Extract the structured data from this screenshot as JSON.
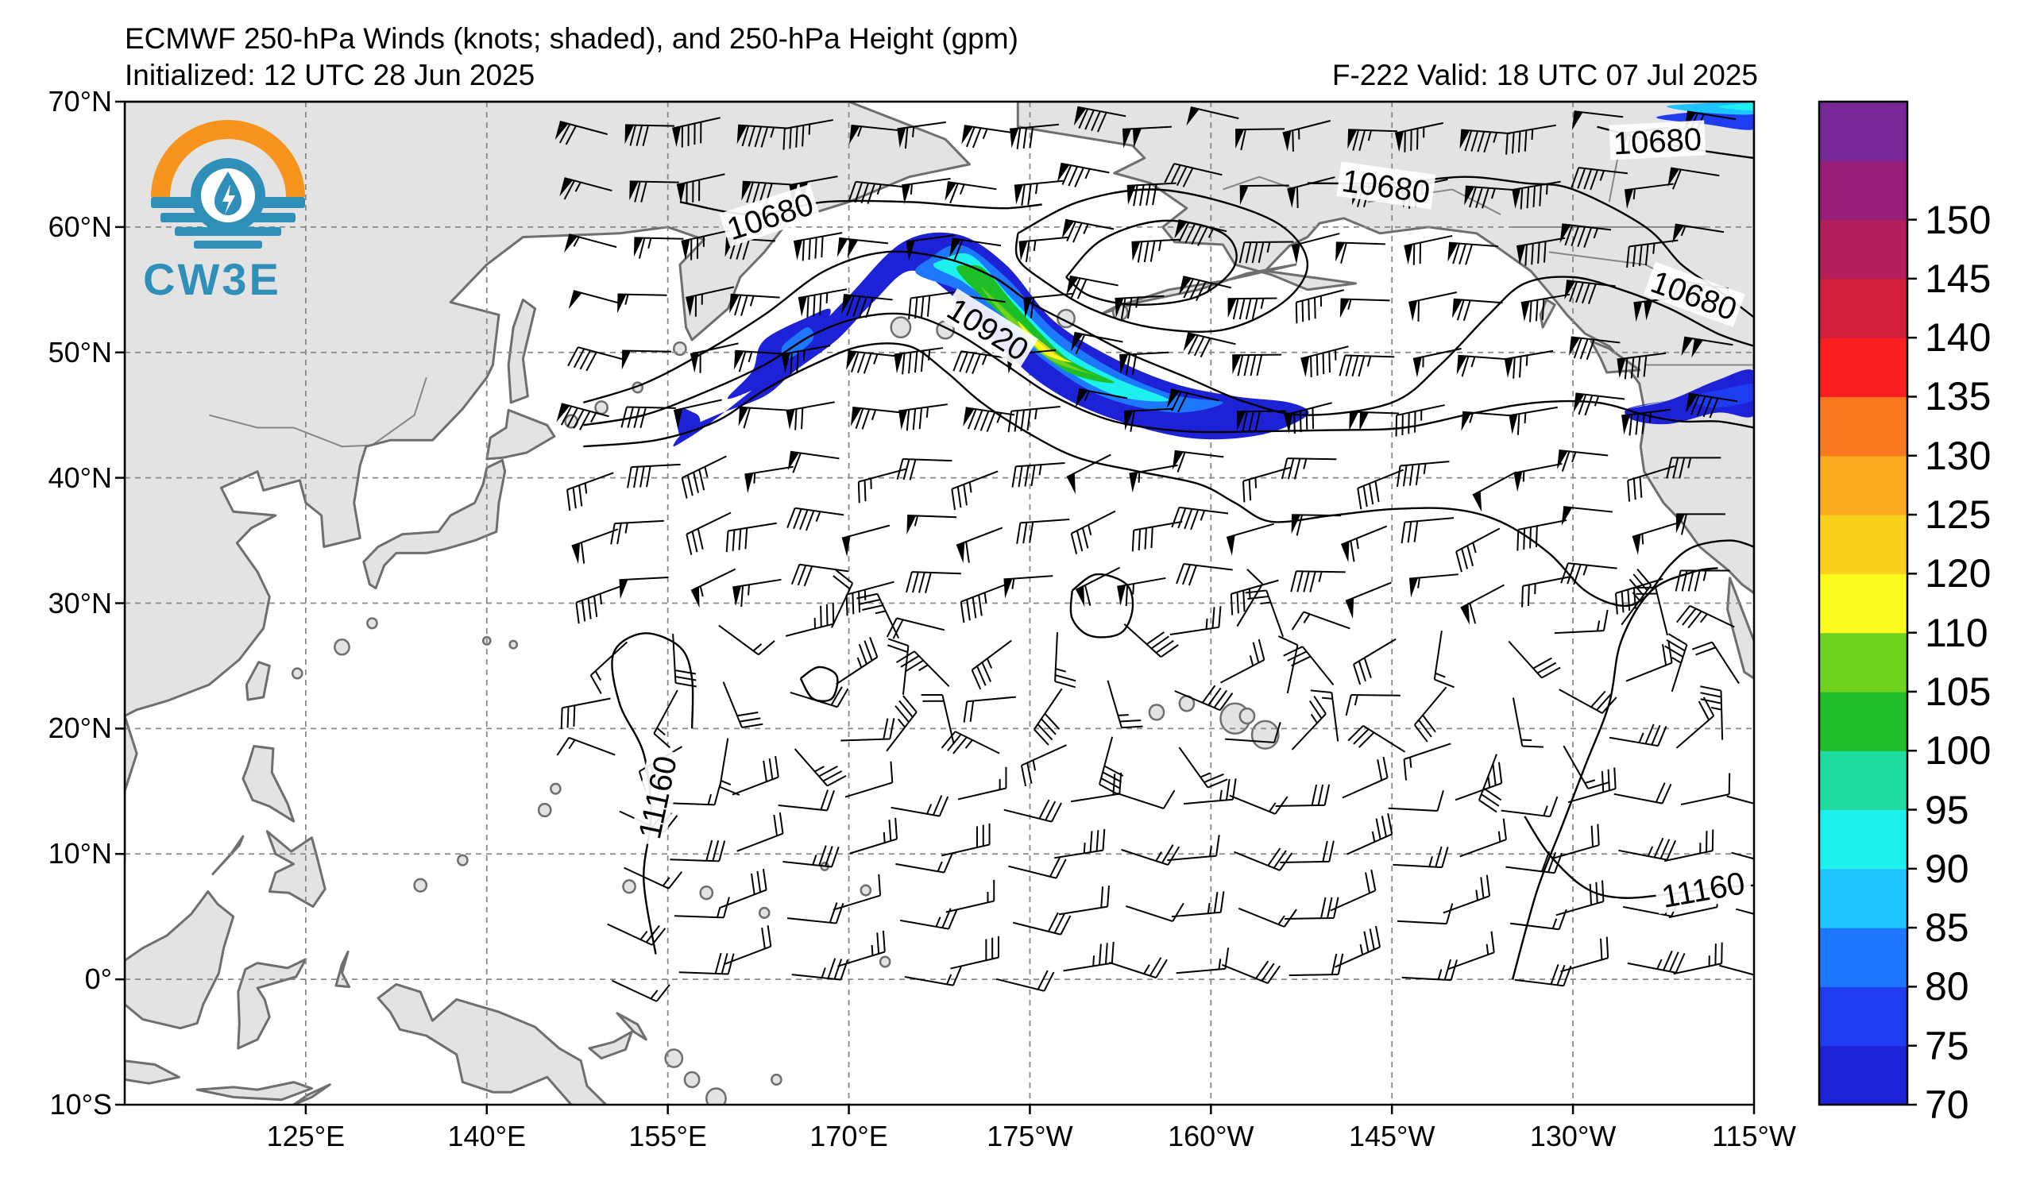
{
  "header": {
    "title_line1": "ECMWF 250-hPa Winds (knots; shaded), and 250-hPa Height (gpm)",
    "init_label": "Initialized: 12 UTC 28 Jun 2025",
    "valid_label": "F-222  Valid: 18 UTC 07 Jul 2025"
  },
  "logo": {
    "text": "CW3E",
    "colors": {
      "orange": "#f7941d",
      "teal": "#2f8fb8",
      "dark": "#1d6f96"
    }
  },
  "map": {
    "lon_range": [
      110,
      245
    ],
    "lat_range": [
      -10,
      70
    ],
    "lat_ticks": [
      {
        "value": 70,
        "label": "70°N"
      },
      {
        "value": 60,
        "label": "60°N"
      },
      {
        "value": 50,
        "label": "50°N"
      },
      {
        "value": 40,
        "label": "40°N"
      },
      {
        "value": 30,
        "label": "30°N"
      },
      {
        "value": 20,
        "label": "20°N"
      },
      {
        "value": 10,
        "label": "10°N"
      },
      {
        "value": 0,
        "label": "0°"
      },
      {
        "value": -10,
        "label": "10°S"
      }
    ],
    "lon_ticks": [
      {
        "value": 125,
        "label": "125°E"
      },
      {
        "value": 140,
        "label": "140°E"
      },
      {
        "value": 155,
        "label": "155°E"
      },
      {
        "value": 170,
        "label": "170°E"
      },
      {
        "value": 185,
        "label": "175°W"
      },
      {
        "value": 200,
        "label": "160°W"
      },
      {
        "value": 215,
        "label": "145°W"
      },
      {
        "value": 230,
        "label": "130°W"
      },
      {
        "value": 245,
        "label": "115°W"
      }
    ],
    "contour_labels": [
      {
        "text": "10680",
        "lon": 163.5,
        "lat": 60.8,
        "rotate": -18
      },
      {
        "text": "10680",
        "lon": 214.5,
        "lat": 63.2,
        "rotate": 8
      },
      {
        "text": "10680",
        "lon": 237,
        "lat": 66.8,
        "rotate": -3
      },
      {
        "text": "10680",
        "lon": 240,
        "lat": 54.5,
        "rotate": 20
      },
      {
        "text": "10920",
        "lon": 181.5,
        "lat": 51.8,
        "rotate": 32
      },
      {
        "text": "11160",
        "lon": 154.2,
        "lat": 14.5,
        "rotate": -78
      },
      {
        "text": "11160",
        "lon": 240.8,
        "lat": 7.1,
        "rotate": -10
      }
    ],
    "colors": {
      "land": "#e3e3e3",
      "coast": "#6e6e6e",
      "grid": "#888888",
      "contour": "#000000"
    }
  },
  "chart_data": {
    "type": "heatmap",
    "variable": "250-hPa wind speed (knots)",
    "colorbar": {
      "levels": [
        70,
        75,
        80,
        85,
        90,
        95,
        100,
        105,
        110,
        120,
        125,
        130,
        135,
        140,
        145,
        150
      ],
      "labels": [
        "70",
        "75",
        "80",
        "85",
        "90",
        "95",
        "100",
        "105",
        "110",
        "120",
        "125",
        "130",
        "135",
        "140",
        "145",
        "150"
      ],
      "colors": [
        "#1e22d6",
        "#1e3cf0",
        "#1e78ff",
        "#1ec4ff",
        "#1ef0ee",
        "#1edca0",
        "#1ebe28",
        "#6ed21e",
        "#fafa1e",
        "#fad21e",
        "#faaa1e",
        "#fa781e",
        "#fa1e1e",
        "#d21e3c",
        "#b41e5a",
        "#961e78",
        "#782896"
      ]
    },
    "height_contours_gpm": [
      10680,
      10920,
      11160
    ],
    "jet_core": [
      {
        "lon": 156,
        "lat": 44.8,
        "speed": 75
      },
      {
        "lon": 165,
        "lat": 51.0,
        "speed": 80
      },
      {
        "lon": 178,
        "lat": 58.0,
        "speed": 95
      },
      {
        "lon": 184,
        "lat": 53.5,
        "speed": 110
      },
      {
        "lon": 190,
        "lat": 48.8,
        "speed": 115
      },
      {
        "lon": 200,
        "lat": 45.3,
        "speed": 100
      },
      {
        "lon": 207,
        "lat": 44.8,
        "speed": 80
      },
      {
        "lon": 241,
        "lat": 45.5,
        "speed": 75
      },
      {
        "lon": 240,
        "lat": 68.5,
        "speed": 85
      }
    ]
  }
}
